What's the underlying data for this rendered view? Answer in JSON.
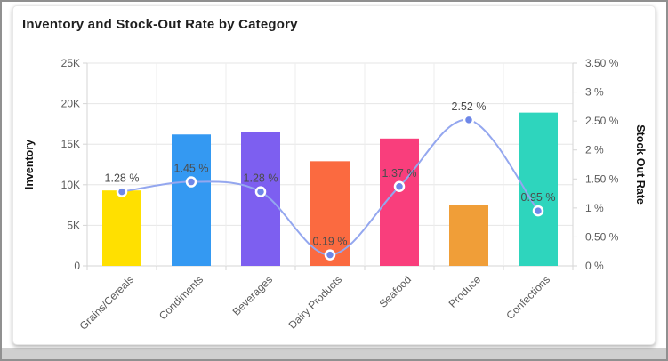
{
  "header": {
    "title": "Inventory and Stock-Out Rate by Category"
  },
  "chart_data": {
    "type": "bar",
    "subtype": "combo-bar-line",
    "title": "Inventory and Stock-Out Rate by Category",
    "categories": [
      "Grains/Cereals",
      "Condiments",
      "Beverages",
      "Dairy Products",
      "Seafood",
      "Produce",
      "Confections"
    ],
    "series": [
      {
        "name": "Inventory",
        "type": "bar",
        "axis": "left",
        "values": [
          9300,
          16200,
          16500,
          12900,
          15700,
          7500,
          18900
        ],
        "bar_colors": [
          "#ffe000",
          "#3499f2",
          "#7d5ff0",
          "#fb6a40",
          "#f93e7c",
          "#f09e38",
          "#2ed5bd"
        ]
      },
      {
        "name": "Stock Out Rate",
        "type": "line",
        "axis": "right",
        "values": [
          1.28,
          1.45,
          1.28,
          0.19,
          1.37,
          2.52,
          0.95
        ],
        "point_labels": [
          "1.28 %",
          "1.45 %",
          "1.28 %",
          "0.19 %",
          "1.37 %",
          "2.52 %",
          "0.95 %"
        ],
        "line_color": "#94a7ef",
        "marker_color": "#6e87e8",
        "marker_stroke": "#ffffff"
      }
    ],
    "left_axis": {
      "title": "Inventory",
      "min": 0,
      "max": 25000,
      "step": 5000,
      "tick_labels": [
        "0",
        "5K",
        "10K",
        "15K",
        "20K",
        "25K"
      ]
    },
    "right_axis": {
      "title": "Stock Out Rate",
      "min": 0,
      "max": 3.5,
      "step": 0.5,
      "tick_labels": [
        "0 %",
        "0.50 %",
        "1 %",
        "1.50 %",
        "2 %",
        "2.50 %",
        "3 %",
        "3.50 %"
      ]
    },
    "grid": true,
    "legend_position": "none",
    "label_color": "#4c4c4c",
    "tick_color": "#5a5a5a",
    "grid_color": "#e6e6e6",
    "axis_line_color": "#d6d6d6"
  }
}
